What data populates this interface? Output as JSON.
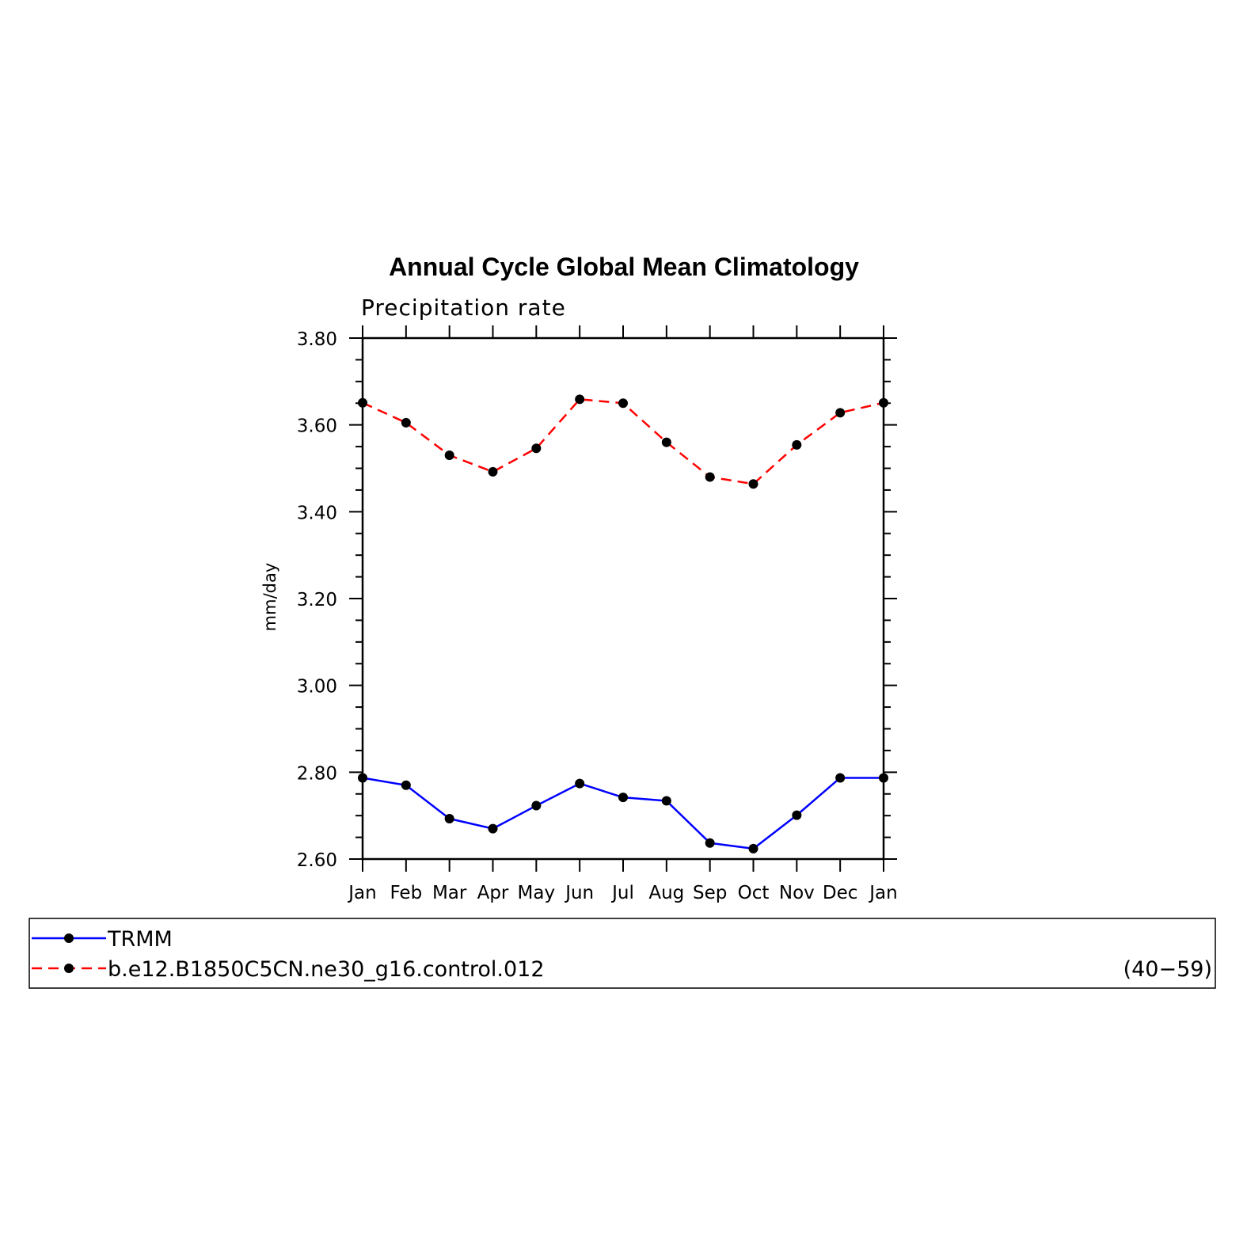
{
  "chart_data": {
    "type": "line",
    "title": "Annual Cycle Global Mean Climatology",
    "subtitle": "Precipitation rate",
    "ylabel": "mm/day",
    "xlabel": "",
    "categories": [
      "Jan",
      "Feb",
      "Mar",
      "Apr",
      "May",
      "Jun",
      "Jul",
      "Aug",
      "Sep",
      "Oct",
      "Nov",
      "Dec",
      "Jan"
    ],
    "ylim": [
      2.6,
      3.8
    ],
    "yticks": [
      "2.60",
      "2.80",
      "3.00",
      "3.20",
      "3.40",
      "3.60",
      "3.80"
    ],
    "grid": false,
    "legend_placement": "bottom",
    "series": [
      {
        "name": "TRMM",
        "color": "#0000ff",
        "dash": "solid",
        "values": [
          2.787,
          2.77,
          2.693,
          2.67,
          2.723,
          2.774,
          2.742,
          2.734,
          2.637,
          2.624,
          2.701,
          2.787,
          2.787
        ]
      },
      {
        "name": "b.e12.B1850C5CN.ne30_g16.control.012",
        "color": "#ff0000",
        "dash": "dashed",
        "values": [
          3.651,
          3.605,
          3.53,
          3.492,
          3.546,
          3.659,
          3.65,
          3.56,
          3.48,
          3.464,
          3.554,
          3.628,
          3.651
        ]
      }
    ],
    "legend_note": "(40−59)"
  }
}
